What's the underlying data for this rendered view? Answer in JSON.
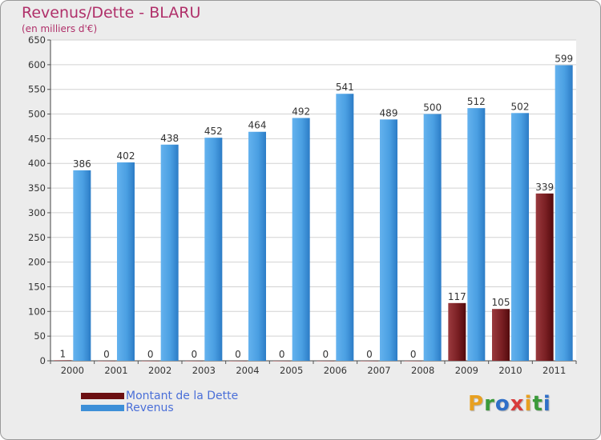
{
  "chart_data": {
    "type": "bar",
    "title": "Revenus/Dette - BLARU",
    "subtitle": "(en milliers d'€)",
    "categories": [
      "2000",
      "2001",
      "2002",
      "2003",
      "2004",
      "2005",
      "2006",
      "2007",
      "2008",
      "2009",
      "2010",
      "2011"
    ],
    "series": [
      {
        "name": "Montant de la Dette",
        "color": "#6b0f12",
        "values": [
          1,
          0,
          0,
          0,
          0,
          0,
          0,
          0,
          0,
          117,
          105,
          339
        ]
      },
      {
        "name": "Revenus",
        "color": "#3d8fd8",
        "values": [
          386,
          402,
          438,
          452,
          464,
          492,
          541,
          489,
          500,
          512,
          502,
          599
        ]
      }
    ],
    "ylim": [
      0,
      650
    ],
    "yticks": [
      0,
      50,
      100,
      150,
      200,
      250,
      300,
      350,
      400,
      450,
      500,
      550,
      600,
      650
    ],
    "grid": true,
    "legend_position": "bottom-left"
  },
  "logo": {
    "letters": [
      "P",
      "r",
      "o",
      "x",
      "i",
      "t",
      "i"
    ],
    "colors": [
      "#e8a020",
      "#3a9a3a",
      "#2f6fc8",
      "#d83c3c",
      "#e8a020",
      "#3a9a3a",
      "#2f6fc8"
    ]
  }
}
